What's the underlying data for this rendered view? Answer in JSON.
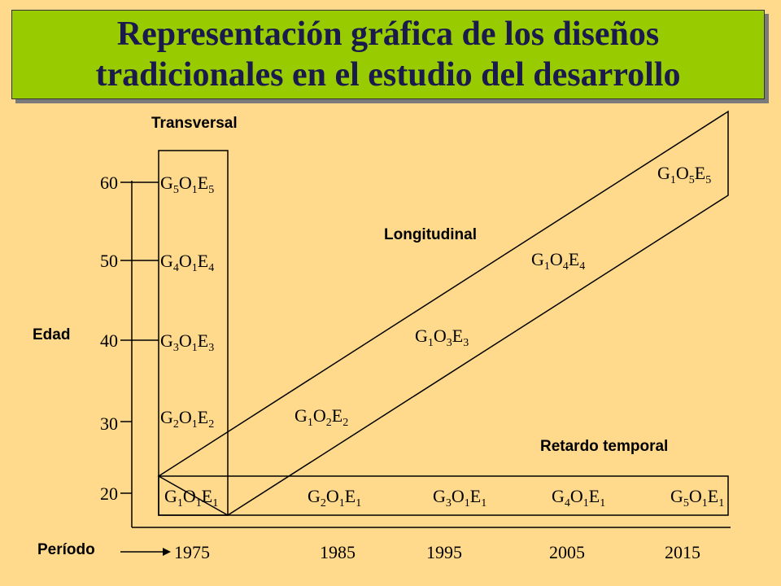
{
  "title": {
    "line1": "Representación gráfica de los diseños",
    "line2": "tradicionales en el estudio del desarrollo"
  },
  "labels": {
    "transversal": "Transversal",
    "longitudinal": "Longitudinal",
    "retardo": "Retardo temporal",
    "edad": "Edad",
    "periodo": "Período"
  },
  "ages": [
    "60",
    "50",
    "40",
    "30",
    "20"
  ],
  "years": [
    "1975",
    "1985",
    "1995",
    "2005",
    "2015"
  ],
  "transversal_cells": [
    {
      "g": "5",
      "o": "1",
      "e": "5"
    },
    {
      "g": "4",
      "o": "1",
      "e": "4"
    },
    {
      "g": "3",
      "o": "1",
      "e": "3"
    },
    {
      "g": "2",
      "o": "1",
      "e": "2"
    }
  ],
  "longitudinal_cells": [
    {
      "g": "1",
      "o": "2",
      "e": "2"
    },
    {
      "g": "1",
      "o": "3",
      "e": "3"
    },
    {
      "g": "1",
      "o": "4",
      "e": "4"
    },
    {
      "g": "1",
      "o": "5",
      "e": "5"
    }
  ],
  "retardo_cells": [
    {
      "g": "1",
      "o": "1",
      "e": "1"
    },
    {
      "g": "2",
      "o": "1",
      "e": "1"
    },
    {
      "g": "3",
      "o": "1",
      "e": "1"
    },
    {
      "g": "4",
      "o": "1",
      "e": "1"
    },
    {
      "g": "5",
      "o": "1",
      "e": "1"
    }
  ],
  "colors": {
    "background": "#FFD98C",
    "title_box": "#99CC00",
    "title_text": "#1a1a4d"
  }
}
